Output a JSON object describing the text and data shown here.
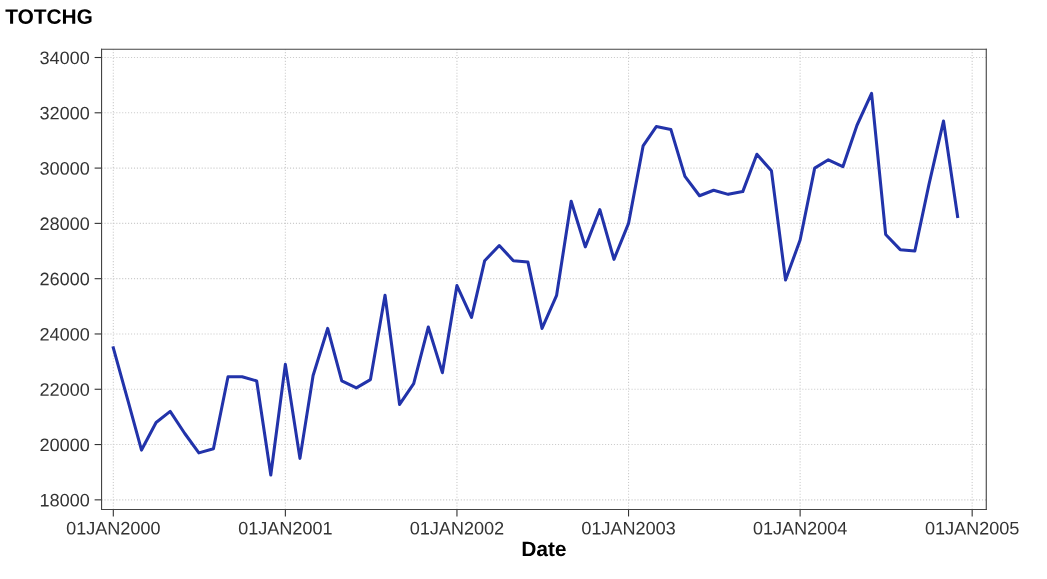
{
  "chart_data": {
    "type": "line",
    "ylabel": "TOTCHG",
    "xlabel": "Date",
    "x": [
      "2000-01",
      "2000-02",
      "2000-03",
      "2000-04",
      "2000-05",
      "2000-06",
      "2000-07",
      "2000-08",
      "2000-09",
      "2000-10",
      "2000-11",
      "2000-12",
      "2001-01",
      "2001-02",
      "2001-03",
      "2001-04",
      "2001-05",
      "2001-06",
      "2001-07",
      "2001-08",
      "2001-09",
      "2001-10",
      "2001-11",
      "2001-12",
      "2002-01",
      "2002-02",
      "2002-03",
      "2002-04",
      "2002-05",
      "2002-06",
      "2002-07",
      "2002-08",
      "2002-09",
      "2002-10",
      "2002-11",
      "2002-12",
      "2003-01",
      "2003-02",
      "2003-03",
      "2003-04",
      "2003-05",
      "2003-06",
      "2003-07",
      "2003-08",
      "2003-09",
      "2003-10",
      "2003-11",
      "2003-12",
      "2004-01",
      "2004-02",
      "2004-03",
      "2004-04",
      "2004-05",
      "2004-06",
      "2004-07",
      "2004-08",
      "2004-09",
      "2004-10",
      "2004-11",
      "2004-12"
    ],
    "series": [
      {
        "color": "#2233aa",
        "values": [
          23500,
          21600,
          19800,
          20800,
          21200,
          20400,
          19700,
          19850,
          22450,
          22450,
          22300,
          18900,
          22900,
          19500,
          22500,
          24200,
          22300,
          22050,
          22350,
          25400,
          21450,
          22200,
          24250,
          22600,
          25750,
          24600,
          26650,
          27200,
          26650,
          26600,
          24200,
          25400,
          28800,
          27150,
          28500,
          26700,
          28000,
          30800,
          31500,
          31400,
          29700,
          29000,
          29200,
          29050,
          29150,
          30500,
          29900,
          25950,
          27400,
          30000,
          30300,
          30050,
          31550,
          32700,
          27600,
          27050,
          27000,
          29400,
          31700,
          28250
        ]
      }
    ],
    "xlim": [
      "1999-12-07",
      "2005-01-31"
    ],
    "xticks": [
      {
        "value": "2000-01-01",
        "label": "01JAN2000"
      },
      {
        "value": "2001-01-01",
        "label": "01JAN2001"
      },
      {
        "value": "2002-01-01",
        "label": "01JAN2002"
      },
      {
        "value": "2003-01-01",
        "label": "01JAN2003"
      },
      {
        "value": "2004-01-01",
        "label": "01JAN2004"
      },
      {
        "value": "2005-01-01",
        "label": "01JAN2005"
      }
    ],
    "ylim": [
      17650,
      34300
    ],
    "yticks": [
      18000,
      20000,
      22000,
      24000,
      26000,
      28000,
      30000,
      32000,
      34000
    ],
    "grid": true,
    "marker": "none",
    "line_style": "solid"
  }
}
